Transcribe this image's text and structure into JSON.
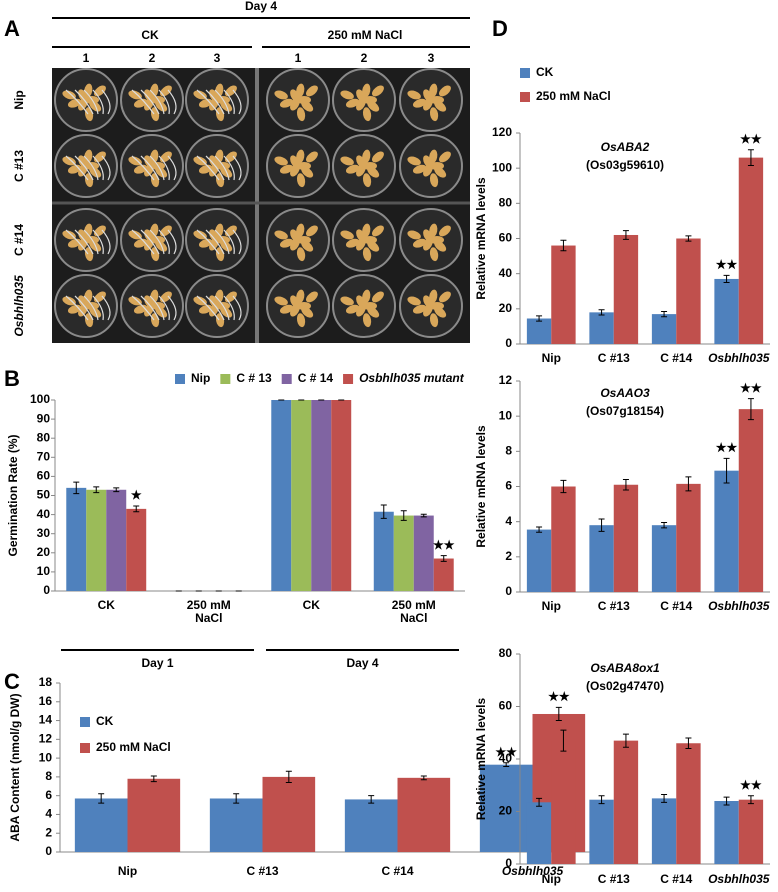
{
  "panel_letters": [
    "A",
    "B",
    "C",
    "D"
  ],
  "photo_panel": {
    "title": "Day 4",
    "groups": [
      "CK",
      "250 mM NaCl"
    ],
    "columns": [
      "1",
      "2",
      "3"
    ],
    "rows": [
      "Nip",
      "C #13",
      "C #14",
      "Osbhlh035"
    ]
  },
  "chart_data": [
    {
      "type": "bar",
      "y_label": "Germination Rate (%)",
      "legend": "top",
      "categories": [
        "CK",
        "250 mM NaCl",
        "CK",
        "250 mM NaCl"
      ],
      "groups": [
        "Day 1",
        "Day 4"
      ],
      "ylim": [
        0,
        100
      ],
      "yticks": [
        0,
        10,
        20,
        30,
        40,
        50,
        60,
        70,
        80,
        90,
        100
      ],
      "series": [
        {
          "name": "Nip",
          "color": "#4f81bd",
          "values": [
            54,
            0,
            100,
            41.5
          ],
          "errors": [
            3,
            0,
            0,
            3.5
          ],
          "significance": [
            null,
            null,
            null,
            null
          ]
        },
        {
          "name": "C # 13",
          "color": "#9bbb59",
          "values": [
            53,
            0,
            100,
            39.5
          ],
          "errors": [
            1.5,
            0,
            0,
            2.5
          ],
          "significance": [
            null,
            null,
            null,
            null
          ]
        },
        {
          "name": "C # 14",
          "color": "#8064a2",
          "values": [
            53,
            0,
            100,
            39.5
          ],
          "errors": [
            1,
            0,
            0,
            0.7
          ],
          "significance": [
            null,
            null,
            null,
            null
          ]
        },
        {
          "name": "Osbhlh035 mutant",
          "color": "#c0504d",
          "values": [
            43,
            0,
            100,
            17
          ],
          "errors": [
            1.5,
            0,
            0,
            1.5
          ],
          "significance": [
            "★",
            null,
            null,
            "★★"
          ]
        }
      ]
    },
    {
      "type": "bar",
      "y_label": "ABA Content (nmol/g DW)",
      "legend": "upper-left",
      "categories": [
        "Nip",
        "C #13",
        "C #14",
        "Osbhlh035"
      ],
      "ylim": [
        0,
        18
      ],
      "yticks": [
        0,
        2,
        4,
        6,
        8,
        10,
        12,
        14,
        16,
        18
      ],
      "series": [
        {
          "name": "CK",
          "color": "#4f81bd",
          "values": [
            5.7,
            5.7,
            5.6,
            9.3
          ],
          "errors": [
            0.5,
            0.5,
            0.4,
            0.2
          ],
          "significance": [
            null,
            null,
            null,
            "★★"
          ]
        },
        {
          "name": "250 mM NaCl",
          "color": "#c0504d",
          "values": [
            7.8,
            8.0,
            7.9,
            14.7
          ],
          "errors": [
            0.3,
            0.6,
            0.2,
            0.7
          ],
          "significance": [
            null,
            null,
            null,
            "★★"
          ]
        }
      ]
    },
    {
      "type": "bar",
      "title": "OsABA2",
      "subtitle": "(Os03g59610)",
      "y_label": "Relative mRNA levels",
      "legend": "top-left",
      "categories": [
        "Nip",
        "C #13",
        "C #14",
        "Osbhlh035"
      ],
      "ylim": [
        0,
        120
      ],
      "yticks": [
        0,
        20,
        40,
        60,
        80,
        100,
        120
      ],
      "series": [
        {
          "name": "CK",
          "color": "#4f81bd",
          "values": [
            14.5,
            18,
            17,
            37
          ],
          "errors": [
            1.5,
            1.5,
            1.5,
            2
          ],
          "significance": [
            null,
            null,
            null,
            "★★"
          ]
        },
        {
          "name": "250 mM NaCl",
          "color": "#c0504d",
          "values": [
            56,
            62,
            60,
            106
          ],
          "errors": [
            3,
            2.5,
            1.5,
            4.5
          ],
          "significance": [
            null,
            null,
            null,
            "★★"
          ]
        }
      ]
    },
    {
      "type": "bar",
      "title": "OsAAO3",
      "subtitle": "(Os07g18154)",
      "y_label": "Relative mRNA levels",
      "categories": [
        "Nip",
        "C #13",
        "C #14",
        "Osbhlh035"
      ],
      "ylim": [
        0,
        12
      ],
      "yticks": [
        0,
        2,
        4,
        6,
        8,
        10,
        12
      ],
      "series": [
        {
          "color": "#4f81bd",
          "values": [
            3.55,
            3.8,
            3.8,
            6.9
          ],
          "errors": [
            0.15,
            0.35,
            0.15,
            0.7
          ],
          "significance": [
            null,
            null,
            null,
            "★★"
          ]
        },
        {
          "color": "#c0504d",
          "values": [
            6.0,
            6.1,
            6.15,
            10.4
          ],
          "errors": [
            0.35,
            0.3,
            0.4,
            0.6
          ],
          "significance": [
            null,
            null,
            null,
            "★★"
          ]
        }
      ]
    },
    {
      "type": "bar",
      "title": "OsABA8ox1",
      "subtitle": "(Os02g47470)",
      "y_label": "Relative mRNA levels",
      "categories": [
        "Nip",
        "C #13",
        "C #14",
        "Osbhlh035"
      ],
      "ylim": [
        0,
        80
      ],
      "yticks": [
        0,
        20,
        40,
        60,
        80
      ],
      "series": [
        {
          "color": "#4f81bd",
          "values": [
            23.5,
            24.5,
            25,
            24
          ],
          "errors": [
            1.5,
            1.5,
            1.5,
            1.5
          ],
          "significance": [
            null,
            null,
            null,
            null
          ]
        },
        {
          "color": "#c0504d",
          "values": [
            47,
            47,
            46,
            24.5
          ],
          "errors": [
            4,
            2.5,
            2,
            1.5
          ],
          "significance": [
            null,
            null,
            null,
            "★★"
          ]
        }
      ]
    }
  ]
}
